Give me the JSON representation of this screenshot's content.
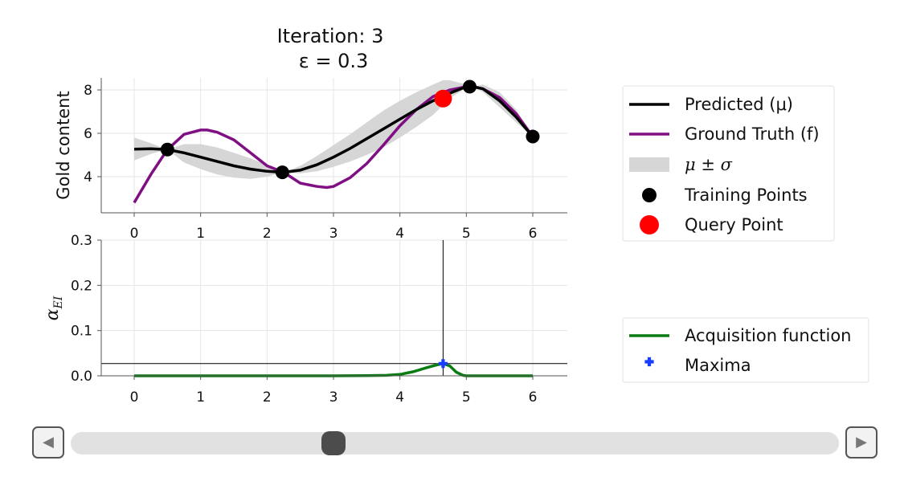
{
  "chart_data": [
    {
      "type": "line",
      "title": [
        "Iteration: 3",
        "ε = 0.3"
      ],
      "ylabel": "Gold content",
      "xlim": [
        -0.5,
        6.5
      ],
      "ylim": [
        2.3,
        8.7
      ],
      "xticks": [
        "0",
        "1",
        "2",
        "3",
        "4",
        "5",
        "6"
      ],
      "yticks": [
        "4",
        "6",
        "8"
      ],
      "grid": true,
      "series": [
        {
          "name": "Predicted (μ)",
          "color": "#000000",
          "x": [
            0,
            0.25,
            0.5,
            0.75,
            1.0,
            1.25,
            1.5,
            1.75,
            2.0,
            2.25,
            2.5,
            2.75,
            3.0,
            3.25,
            3.5,
            3.75,
            4.0,
            4.25,
            4.5,
            4.75,
            5.0,
            5.1,
            5.25,
            5.5,
            5.75,
            6.0
          ],
          "y": [
            5.27,
            5.29,
            5.25,
            5.1,
            4.9,
            4.7,
            4.5,
            4.35,
            4.25,
            4.2,
            4.3,
            4.55,
            4.9,
            5.3,
            5.75,
            6.2,
            6.65,
            7.1,
            7.5,
            7.85,
            8.15,
            8.15,
            8.05,
            7.5,
            6.75,
            5.85
          ]
        },
        {
          "name": "Ground Truth (f)",
          "color": "#7f0f82",
          "x": [
            0,
            0.25,
            0.5,
            0.75,
            1.0,
            1.1,
            1.25,
            1.5,
            1.75,
            2.0,
            2.25,
            2.5,
            2.75,
            2.9,
            3.0,
            3.25,
            3.5,
            3.75,
            4.0,
            4.25,
            4.5,
            4.75,
            5.0,
            5.1,
            5.25,
            5.5,
            5.75,
            6.0
          ],
          "y": [
            2.8,
            4.1,
            5.25,
            5.95,
            6.15,
            6.15,
            6.05,
            5.7,
            5.1,
            4.5,
            4.2,
            3.7,
            3.55,
            3.5,
            3.55,
            3.95,
            4.6,
            5.45,
            6.35,
            7.1,
            7.7,
            8.0,
            8.15,
            8.15,
            8.05,
            7.65,
            6.9,
            5.85
          ]
        },
        {
          "name": "μ ± σ",
          "color": "#d6d6d6",
          "type": "band",
          "x": [
            0,
            0.25,
            0.5,
            0.75,
            1.0,
            1.25,
            1.5,
            1.75,
            2.0,
            2.25,
            2.5,
            2.75,
            3.0,
            3.25,
            3.5,
            3.75,
            4.0,
            4.25,
            4.5,
            4.65,
            4.75,
            5.0,
            5.1,
            5.25,
            5.5,
            5.75,
            6.0
          ],
          "lower": [
            4.75,
            5.05,
            5.25,
            4.65,
            4.35,
            4.1,
            3.95,
            3.9,
            4.0,
            4.2,
            4.15,
            4.25,
            4.45,
            4.7,
            5.0,
            5.35,
            5.8,
            6.3,
            6.85,
            7.3,
            7.6,
            8.1,
            8.15,
            7.9,
            7.2,
            6.5,
            5.85
          ],
          "upper": [
            5.8,
            5.55,
            5.25,
            5.5,
            5.5,
            5.35,
            5.1,
            4.85,
            4.55,
            4.2,
            4.5,
            4.95,
            5.45,
            5.95,
            6.5,
            7.05,
            7.5,
            7.9,
            8.25,
            8.45,
            8.45,
            8.25,
            8.15,
            8.25,
            7.9,
            7.1,
            5.85
          ]
        },
        {
          "name": "Training Points",
          "color": "#000000",
          "type": "scatter",
          "x": [
            0.5,
            2.23,
            5.05,
            6.0
          ],
          "y": [
            5.25,
            4.2,
            8.15,
            5.85
          ]
        },
        {
          "name": "Query Point",
          "color": "#ff0000",
          "type": "scatter",
          "x": [
            4.65
          ],
          "y": [
            7.6
          ]
        }
      ],
      "legend": "right"
    },
    {
      "type": "line",
      "ylabel": "α_EI",
      "xlim": [
        -0.5,
        6.5
      ],
      "ylim": [
        0,
        0.3
      ],
      "xticks": [
        "0",
        "1",
        "2",
        "3",
        "4",
        "5",
        "6"
      ],
      "yticks": [
        "0.0",
        "0.1",
        "0.2",
        "0.3"
      ],
      "grid": true,
      "series": [
        {
          "name": "Acquisition function",
          "color": "#0a7d12",
          "x": [
            0,
            1,
            2,
            3,
            3.5,
            3.8,
            4.0,
            4.2,
            4.4,
            4.55,
            4.65,
            4.75,
            4.85,
            4.95,
            5.0,
            6.0
          ],
          "y": [
            0,
            0,
            0,
            0,
            0.0005,
            0.001,
            0.003,
            0.009,
            0.018,
            0.024,
            0.027,
            0.022,
            0.008,
            0.001,
            0,
            0
          ]
        },
        {
          "name": "Maxima",
          "color": "#1a3cff",
          "type": "scatter",
          "x": [
            4.65
          ],
          "y": [
            0.027
          ]
        }
      ],
      "reference_lines": {
        "vertical_x": 4.65,
        "horizontal_y": 0.027
      },
      "legend": "right"
    }
  ],
  "slider": {
    "value_fraction": 0.337,
    "prev_icon": "◀",
    "next_icon": "▶"
  }
}
